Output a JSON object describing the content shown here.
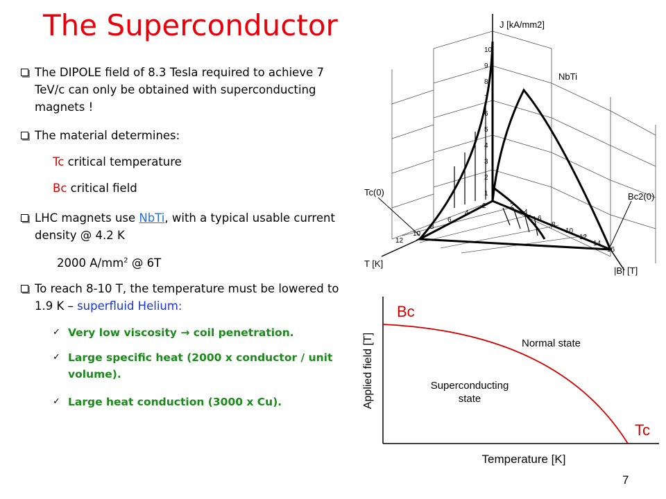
{
  "title": "The Superconductor",
  "bullets": [
    {
      "text": "The DIPOLE field of 8.3 Tesla required to achieve 7 TeV/c can only be obtained with superconducting magnets !"
    },
    {
      "text": "The material determines:"
    },
    {
      "before": "LHC magnets use",
      "link": "NbTi",
      "after": ", with a typical usable current density @ 4.2 K"
    },
    {
      "text": "To reach 8-10 T, the temperature must be lowered to 1.9 K –",
      "highlight": "superfluid Helium:"
    }
  ],
  "properties": [
    {
      "term": "Tc",
      "text": "critical temperature"
    },
    {
      "term": "Bc",
      "text": "critical field"
    }
  ],
  "current_density": {
    "value": "2000 A/mm",
    "superscript": "2",
    "rest": "@ 6T"
  },
  "checks": [
    "Very low viscosity → coil penetration.",
    "Large specific heat (2000 x conductor / unit volume).",
    "Large heat conduction (3000 x Cu)."
  ],
  "figure_3d": {
    "j_axis": "J [kA/mm2]",
    "material": "NbTi",
    "tc0": "Tc(0)",
    "bc20": "Bc2(0)",
    "t_axis": "T [K]",
    "b_axis": "|B| [T]",
    "j_ticks": [
      "10",
      "9",
      "8",
      "7",
      "6",
      "5",
      "4",
      "3",
      "2",
      "1"
    ],
    "b_ticks": [
      "2",
      "4",
      "6",
      "8",
      "10",
      "12",
      "14",
      "16"
    ],
    "t_ticks": [
      "2",
      "4",
      "6",
      "8",
      "10",
      "12"
    ]
  },
  "phase_diagram": {
    "bc": "Bc",
    "tc": "Tc",
    "normal": "Normal state",
    "superconducting": [
      "Superconducting",
      "state"
    ],
    "y_axis": "Applied field [T]",
    "x_axis": "Temperature [K]"
  },
  "page_number": "7"
}
